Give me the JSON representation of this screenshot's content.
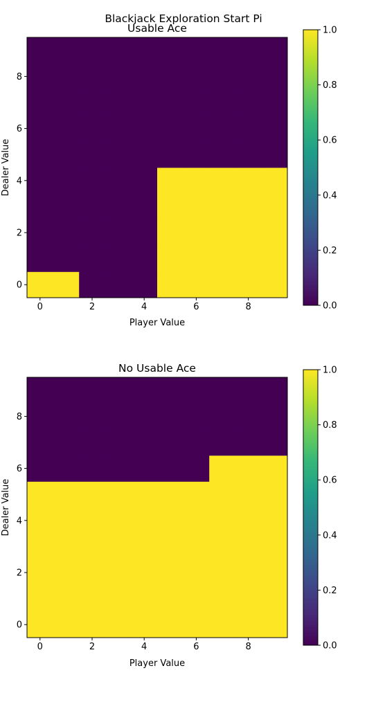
{
  "figure": {
    "suptitle": "Blackjack Exploration Start Pi"
  },
  "colorbar": {
    "ticks": [
      "0.0",
      "0.2",
      "0.4",
      "0.6",
      "0.8",
      "1.0"
    ],
    "colors": [
      "#440154",
      "#482878",
      "#3e4989",
      "#31688e",
      "#26828e",
      "#1f9e89",
      "#35b779",
      "#6ece58",
      "#b5de2b",
      "#fde725"
    ]
  },
  "chart_data": [
    {
      "type": "heatmap",
      "title": "Usable Ace",
      "xlabel": "Player Value",
      "ylabel": "Dealer Value",
      "xticks": [
        0,
        2,
        4,
        6,
        8
      ],
      "yticks": [
        0,
        2,
        4,
        6,
        8
      ],
      "xlim": [
        -0.5,
        9.5
      ],
      "ylim": [
        -0.5,
        9.5
      ],
      "vrange": [
        0,
        1
      ],
      "colormap": "viridis",
      "values": [
        [
          1,
          1,
          0,
          0,
          0,
          1,
          1,
          1,
          1,
          1
        ],
        [
          0,
          0,
          0,
          0,
          0,
          1,
          1,
          1,
          1,
          1
        ],
        [
          0,
          0,
          0,
          0,
          0,
          1,
          1,
          1,
          1,
          1
        ],
        [
          0,
          0,
          0,
          0,
          0,
          1,
          1,
          1,
          1,
          1
        ],
        [
          0,
          0,
          0,
          0,
          0,
          1,
          1,
          1,
          1,
          1
        ],
        [
          0,
          0,
          0,
          0,
          0,
          0,
          0,
          0,
          0,
          0
        ],
        [
          0,
          0,
          0,
          0,
          0,
          0,
          0,
          0,
          0,
          0
        ],
        [
          0,
          0,
          0,
          0,
          0,
          0,
          0,
          0,
          0,
          0
        ],
        [
          0,
          0,
          0,
          0,
          0,
          0,
          0,
          0,
          0,
          0
        ],
        [
          0,
          0,
          0,
          0,
          0,
          0,
          0,
          0,
          0,
          0
        ]
      ]
    },
    {
      "type": "heatmap",
      "title": "No Usable Ace",
      "xlabel": "Player Value",
      "ylabel": "Dealer Value",
      "xticks": [
        0,
        2,
        4,
        6,
        8
      ],
      "yticks": [
        0,
        2,
        4,
        6,
        8
      ],
      "xlim": [
        -0.5,
        9.5
      ],
      "ylim": [
        -0.5,
        9.5
      ],
      "vrange": [
        0,
        1
      ],
      "colormap": "viridis",
      "values": [
        [
          1,
          1,
          1,
          1,
          1,
          1,
          1,
          1,
          1,
          1
        ],
        [
          1,
          1,
          1,
          1,
          1,
          1,
          1,
          1,
          1,
          1
        ],
        [
          1,
          1,
          1,
          1,
          1,
          1,
          1,
          1,
          1,
          1
        ],
        [
          1,
          1,
          1,
          1,
          1,
          1,
          1,
          1,
          1,
          1
        ],
        [
          1,
          1,
          1,
          1,
          1,
          1,
          1,
          1,
          1,
          1
        ],
        [
          1,
          1,
          1,
          1,
          1,
          1,
          1,
          1,
          1,
          1
        ],
        [
          0,
          0,
          0,
          0,
          0,
          0,
          0,
          1,
          1,
          1
        ],
        [
          0,
          0,
          0,
          0,
          0,
          0,
          0,
          0,
          0,
          0
        ],
        [
          0,
          0,
          0,
          0,
          0,
          0,
          0,
          0,
          0,
          0
        ],
        [
          0,
          0,
          0,
          0,
          0,
          0,
          0,
          0,
          0,
          0
        ]
      ]
    }
  ]
}
